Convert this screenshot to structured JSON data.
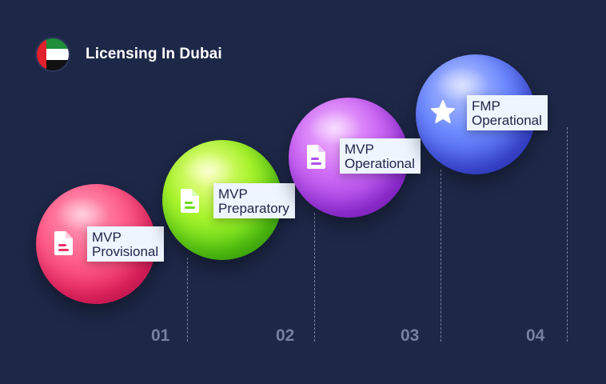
{
  "header": {
    "title": "Licensing In Dubai",
    "flag_icon": "uae-flag-icon"
  },
  "steps": [
    {
      "number": "01",
      "line1": "MVP",
      "line2": "Provisional",
      "icon": "document-icon",
      "color": "#ef2f66"
    },
    {
      "number": "02",
      "line1": "MVP",
      "line2": "Preparatory",
      "icon": "document-icon",
      "color": "#6fdc18"
    },
    {
      "number": "03",
      "line1": "MVP",
      "line2": "Operational",
      "icon": "document-icon",
      "color": "#b04fea"
    },
    {
      "number": "04",
      "line1": "FMP",
      "line2": "Operational",
      "icon": "star-icon",
      "color": "#5066f0"
    }
  ]
}
